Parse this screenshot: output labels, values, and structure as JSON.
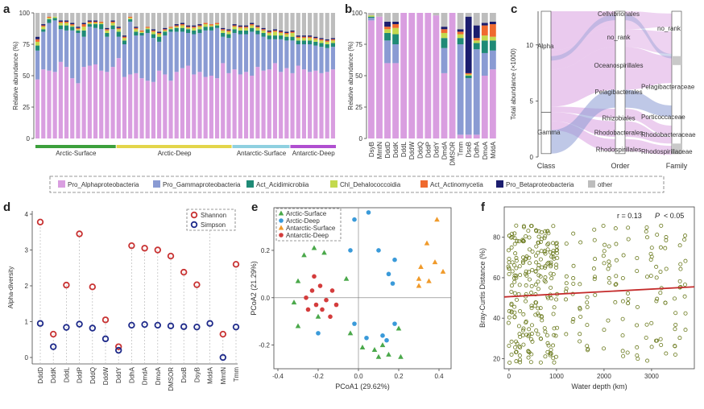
{
  "panels": {
    "a": "a",
    "b": "b",
    "c": "c",
    "d": "d",
    "e": "e",
    "f": "f"
  },
  "legend_colors": {
    "Pro_Alphaproteobacteria": "#d99ee0",
    "Pro_Gammaproteobacteria": "#8a9bd3",
    "Act_Acidimicrobiia": "#1f8a76",
    "Chl_Dehalococcoidia": "#c3d94e",
    "Act_Actinomycetia": "#ef6a2f",
    "Pro_Betaproteobacteria": "#1b1d6e",
    "other": "#bdbdbd"
  },
  "chart_data": [
    {
      "panel": "a",
      "type": "bar",
      "stacked": true,
      "ylabel": "Relative abundance (%)",
      "ylim": [
        0,
        100
      ],
      "yticks": [
        "0",
        "25",
        "50",
        "75",
        "100"
      ],
      "groups": [
        {
          "label": "Arctic-Surface",
          "color": "#3ca03c",
          "count": 14
        },
        {
          "label": "Arctic-Deep",
          "color": "#e3d54a",
          "count": 20
        },
        {
          "label": "Antarctic-Surface",
          "color": "#8fd0e0",
          "count": 10
        },
        {
          "label": "Antarctic-Deep",
          "color": "#b04fd0",
          "count": 8
        }
      ],
      "series_order": [
        "Pro_Alphaproteobacteria",
        "Pro_Gammaproteobacteria",
        "Act_Acidimicrobiia",
        "Chl_Dehalococcoidia",
        "Act_Actinomycetia",
        "Pro_Betaproteobacteria",
        "other"
      ],
      "alpha": [
        47,
        55,
        54,
        53,
        61,
        57,
        48,
        44,
        57,
        58,
        59,
        54,
        53,
        57,
        64,
        49,
        51,
        52,
        48,
        46,
        45,
        54,
        51,
        46,
        53,
        56,
        58,
        51,
        53,
        49,
        50,
        48,
        60,
        52,
        55,
        51,
        53,
        50,
        57,
        54,
        55,
        60,
        53,
        56,
        52,
        58,
        55,
        53,
        54,
        52,
        53,
        55
      ],
      "gamma": [
        23,
        30,
        38,
        41,
        26,
        29,
        38,
        40,
        24,
        31,
        29,
        33,
        28,
        30,
        17,
        26,
        42,
        30,
        34,
        38,
        35,
        23,
        31,
        39,
        32,
        29,
        26,
        32,
        31,
        37,
        36,
        40,
        21,
        28,
        29,
        32,
        30,
        35,
        26,
        27,
        24,
        19,
        26,
        22,
        26,
        17,
        20,
        22,
        20,
        21,
        19,
        18
      ],
      "acid": [
        4,
        2,
        3,
        2,
        3,
        4,
        3,
        2,
        5,
        2,
        3,
        4,
        3,
        3,
        4,
        3,
        2,
        3,
        2,
        3,
        3,
        4,
        3,
        2,
        3,
        3,
        3,
        3,
        3,
        3,
        3,
        2,
        3,
        3,
        3,
        3,
        3,
        3,
        3,
        3,
        3,
        3,
        3,
        3,
        3,
        3,
        3,
        3,
        3,
        3,
        3,
        3
      ],
      "dehalo": [
        3,
        2,
        1,
        1,
        2,
        2,
        1,
        1,
        3,
        1,
        1,
        1,
        2,
        2,
        2,
        2,
        1,
        2,
        1,
        1,
        2,
        2,
        1,
        1,
        1,
        2,
        1,
        2,
        2,
        2,
        1,
        1,
        2,
        2,
        2,
        2,
        2,
        2,
        2,
        2,
        2,
        3,
        2,
        2,
        3,
        2,
        2,
        2,
        2,
        2,
        2,
        2
      ],
      "actino": [
        2,
        1,
        1,
        0,
        1,
        1,
        1,
        1,
        2,
        1,
        1,
        1,
        1,
        1,
        1,
        1,
        1,
        1,
        1,
        1,
        1,
        1,
        1,
        1,
        1,
        1,
        1,
        1,
        1,
        1,
        1,
        1,
        1,
        1,
        1,
        1,
        1,
        1,
        1,
        1,
        1,
        1,
        1,
        1,
        1,
        1,
        1,
        1,
        1,
        1,
        1,
        1
      ],
      "beta": [
        2,
        1,
        0,
        0,
        1,
        1,
        1,
        1,
        1,
        1,
        1,
        0,
        1,
        1,
        1,
        1,
        0,
        1,
        0,
        0,
        1,
        1,
        1,
        0,
        1,
        1,
        1,
        1,
        1,
        0,
        0,
        0,
        1,
        1,
        1,
        1,
        1,
        1,
        1,
        1,
        1,
        1,
        1,
        1,
        1,
        1,
        1,
        1,
        1,
        1,
        1,
        1
      ]
    },
    {
      "panel": "b",
      "type": "bar",
      "stacked": true,
      "ylabel": "Relative abundance (%)",
      "ylim": [
        0,
        100
      ],
      "yticks": [
        "0",
        "25",
        "50",
        "75",
        "100"
      ],
      "categories": [
        "DsyB",
        "MmtN",
        "DddD",
        "DddK",
        "DddL",
        "DddW",
        "DddQ",
        "DddP",
        "DddY",
        "DmdA",
        "DMSOR",
        "Tmm",
        "DsoB",
        "DdhA",
        "DmoA",
        "MddA"
      ],
      "alpha": [
        94,
        97,
        60,
        60,
        100,
        100,
        100,
        100,
        98,
        52,
        100,
        3,
        3,
        3,
        50,
        55
      ],
      "gamma": [
        2,
        0,
        18,
        15,
        0,
        0,
        0,
        0,
        0,
        20,
        0,
        72,
        45,
        68,
        18,
        15
      ],
      "acid": [
        1,
        0,
        6,
        8,
        0,
        0,
        0,
        0,
        0,
        8,
        0,
        5,
        2,
        5,
        10,
        8
      ],
      "dehalo": [
        1,
        0,
        3,
        5,
        0,
        0,
        0,
        0,
        0,
        4,
        0,
        3,
        1,
        2,
        4,
        3
      ],
      "actino": [
        0,
        0,
        2,
        3,
        0,
        0,
        0,
        0,
        0,
        3,
        0,
        2,
        1,
        2,
        8,
        10
      ],
      "beta": [
        0,
        0,
        4,
        2,
        0,
        0,
        0,
        0,
        0,
        2,
        0,
        2,
        45,
        10,
        2,
        2
      ],
      "other": [
        2,
        3,
        7,
        7,
        0,
        0,
        0,
        0,
        2,
        11,
        0,
        13,
        3,
        10,
        8,
        7
      ]
    },
    {
      "panel": "c",
      "type": "alluvial",
      "ylabel": "Total abundance (×1000)",
      "ylim": [
        0,
        13
      ],
      "yticks": [
        "0",
        "5",
        "10"
      ],
      "axes": [
        "Class",
        "Order",
        "Family"
      ],
      "class_nodes": [
        "Alpha",
        "Gamma"
      ],
      "order_nodes": [
        "Cellvibrionales",
        "no_rank",
        "Oceanospirillales",
        "Pelagibacterales",
        "Rhizobiales",
        "Rhodobacterales",
        "Rhodospirillales"
      ],
      "family_nodes": [
        "no_rank",
        "Pelagibacteraceae",
        "Porticoccaceae",
        "Rhodobacteraceae",
        "Rhodospirillaceae"
      ]
    },
    {
      "panel": "d",
      "type": "scatter",
      "ylabel": "Alpha-diversity",
      "ylim": [
        0,
        4
      ],
      "yticks": [
        "0",
        "1",
        "2",
        "3",
        "4"
      ],
      "categories": [
        "DddD",
        "DddK",
        "DddL",
        "DddP",
        "DddQ",
        "DddW",
        "DddY",
        "DdhA",
        "DmdA",
        "DmoA",
        "DMSOR",
        "DsoB",
        "DsyB",
        "MddA",
        "MmtN",
        "Tmm"
      ],
      "series": [
        {
          "name": "Shannon",
          "color": "#c83232",
          "values": [
            3.78,
            0.65,
            2.02,
            3.45,
            1.97,
            1.05,
            0.3,
            3.12,
            3.05,
            3.0,
            2.83,
            2.38,
            2.03,
            3.75,
            0.65,
            2.6
          ]
        },
        {
          "name": "Simpson",
          "color": "#1e2a8a",
          "values": [
            0.95,
            0.3,
            0.84,
            0.93,
            0.82,
            0.52,
            0.2,
            0.9,
            0.92,
            0.9,
            0.88,
            0.86,
            0.85,
            0.95,
            0.0,
            0.85
          ]
        }
      ]
    },
    {
      "panel": "e",
      "type": "scatter",
      "xlabel": "PCoA1 (29.62%)",
      "ylabel": "PCoA2 (21.29%)",
      "xlim": [
        -0.42,
        0.46
      ],
      "ylim": [
        -0.3,
        0.38
      ],
      "xticks": [
        "-0.4",
        "-0.2",
        "0.0",
        "0.2",
        "0.4"
      ],
      "yticks": [
        "-0.2",
        "0.0",
        "0.2"
      ],
      "series": [
        {
          "name": "Arctic-Surface",
          "color": "#4aa84a",
          "marker": "triangle",
          "points": [
            [
              -0.27,
              0.18
            ],
            [
              -0.22,
              0.21
            ],
            [
              -0.17,
              0.19
            ],
            [
              -0.3,
              0.07
            ],
            [
              -0.32,
              -0.02
            ],
            [
              -0.3,
              -0.12
            ],
            [
              -0.2,
              -0.08
            ],
            [
              -0.06,
              0.08
            ],
            [
              -0.04,
              -0.15
            ],
            [
              0.02,
              -0.21
            ],
            [
              0.08,
              -0.22
            ],
            [
              0.12,
              -0.2
            ],
            [
              0.1,
              -0.25
            ],
            [
              0.15,
              -0.24
            ],
            [
              0.2,
              -0.13
            ],
            [
              0.21,
              -0.25
            ]
          ]
        },
        {
          "name": "Arctic-Deep",
          "color": "#3a9ad9",
          "marker": "circle",
          "points": [
            [
              0.05,
              0.36
            ],
            [
              -0.02,
              0.33
            ],
            [
              -0.04,
              0.2
            ],
            [
              0.1,
              0.2
            ],
            [
              0.15,
              0.1
            ],
            [
              0.17,
              0.06
            ],
            [
              0.12,
              -0.16
            ],
            [
              0.18,
              -0.11
            ],
            [
              0.14,
              -0.18
            ],
            [
              0.04,
              -0.17
            ],
            [
              -0.2,
              -0.15
            ],
            [
              -0.02,
              -0.11
            ],
            [
              0.18,
              0.16
            ]
          ]
        },
        {
          "name": "Antarctic-Surface",
          "color": "#f09a2a",
          "marker": "triangle",
          "points": [
            [
              0.39,
              0.33
            ],
            [
              0.34,
              0.23
            ],
            [
              0.31,
              0.13
            ],
            [
              0.3,
              0.05
            ],
            [
              0.38,
              0.15
            ],
            [
              0.42,
              0.11
            ],
            [
              0.35,
              0.07
            ],
            [
              0.3,
              0.08
            ]
          ]
        },
        {
          "name": "Antarctic-Deep",
          "color": "#d43c3c",
          "marker": "circle",
          "points": [
            [
              -0.22,
              0.09
            ],
            [
              -0.19,
              0.05
            ],
            [
              -0.26,
              0.0
            ],
            [
              -0.23,
              0.03
            ],
            [
              -0.16,
              -0.01
            ],
            [
              -0.21,
              -0.03
            ],
            [
              -0.11,
              -0.03
            ],
            [
              -0.18,
              -0.05
            ],
            [
              -0.13,
              0.03
            ],
            [
              -0.25,
              -0.05
            ],
            [
              -0.14,
              -0.08
            ]
          ]
        }
      ]
    },
    {
      "panel": "f",
      "type": "scatter",
      "xlabel": "Water depth (km)",
      "ylabel": "Bray-Curtis Distance (%)",
      "xlim": [
        -100,
        3900
      ],
      "ylim": [
        15,
        95
      ],
      "xticks": [
        "0",
        "1000",
        "2000",
        "3000"
      ],
      "yticks": [
        "20",
        "40",
        "60",
        "80"
      ],
      "annotation_r": "r = 0.13",
      "annotation_p_label": "P",
      "annotation_p_value": "< 0.05",
      "trend": {
        "color": "#c42b2b",
        "x": [
          -100,
          3900
        ],
        "y": [
          50.5,
          55.5
        ]
      },
      "point_color": "#6b7a1e"
    }
  ]
}
